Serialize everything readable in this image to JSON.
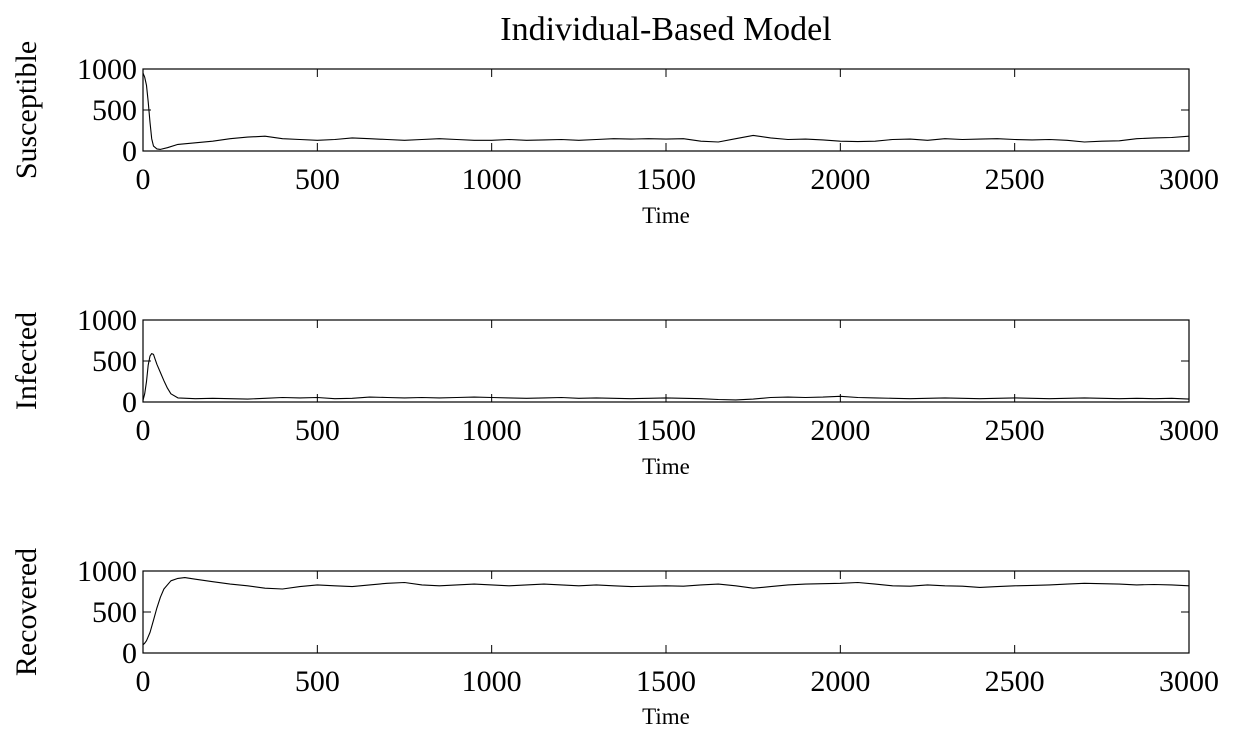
{
  "chart_data": {
    "type": "line",
    "title": "Individual-Based Model",
    "panels": [
      {
        "id": "susceptible",
        "ylabel": "Susceptible",
        "xlabel": "Time",
        "xlim": [
          0,
          3000
        ],
        "ylim": [
          0,
          1000
        ],
        "xticks": [
          0,
          500,
          1000,
          1500,
          2000,
          2500,
          3000
        ],
        "yticks": [
          0,
          500,
          1000
        ],
        "x": [
          0,
          5,
          10,
          15,
          20,
          25,
          30,
          40,
          50,
          70,
          100,
          150,
          200,
          250,
          300,
          350,
          400,
          450,
          500,
          550,
          600,
          650,
          700,
          750,
          800,
          850,
          900,
          950,
          1000,
          1050,
          1100,
          1150,
          1200,
          1250,
          1300,
          1350,
          1400,
          1450,
          1500,
          1550,
          1600,
          1650,
          1700,
          1750,
          1800,
          1850,
          1900,
          1950,
          2000,
          2050,
          2100,
          2150,
          2200,
          2250,
          2300,
          2350,
          2400,
          2450,
          2500,
          2550,
          2600,
          2650,
          2700,
          2750,
          2800,
          2850,
          2900,
          2950,
          3000
        ],
        "values": [
          950,
          900,
          800,
          600,
          350,
          150,
          60,
          25,
          20,
          40,
          80,
          100,
          120,
          150,
          170,
          180,
          150,
          140,
          130,
          140,
          160,
          150,
          140,
          130,
          140,
          150,
          140,
          130,
          130,
          140,
          130,
          135,
          140,
          130,
          140,
          150,
          145,
          150,
          145,
          150,
          120,
          110,
          150,
          190,
          160,
          140,
          145,
          135,
          120,
          115,
          120,
          140,
          145,
          130,
          150,
          140,
          145,
          150,
          140,
          135,
          140,
          130,
          110,
          120,
          125,
          150,
          160,
          165,
          180
        ]
      },
      {
        "id": "infected",
        "ylabel": "Infected",
        "xlabel": "Time",
        "xlim": [
          0,
          3000
        ],
        "ylim": [
          0,
          1000
        ],
        "xticks": [
          0,
          500,
          1000,
          1500,
          2000,
          2500,
          3000
        ],
        "yticks": [
          0,
          500,
          1000
        ],
        "x": [
          0,
          5,
          10,
          15,
          20,
          25,
          30,
          35,
          40,
          50,
          60,
          70,
          80,
          100,
          150,
          200,
          250,
          300,
          350,
          400,
          450,
          500,
          550,
          600,
          650,
          700,
          750,
          800,
          850,
          900,
          950,
          1000,
          1050,
          1100,
          1150,
          1200,
          1250,
          1300,
          1350,
          1400,
          1450,
          1500,
          1550,
          1600,
          1650,
          1700,
          1750,
          1800,
          1850,
          1900,
          1950,
          2000,
          2050,
          2100,
          2150,
          2200,
          2250,
          2300,
          2350,
          2400,
          2450,
          2500,
          2550,
          2600,
          2650,
          2700,
          2750,
          2800,
          2850,
          2900,
          2950,
          3000
        ],
        "values": [
          20,
          100,
          250,
          450,
          560,
          590,
          580,
          520,
          460,
          360,
          260,
          170,
          100,
          50,
          40,
          45,
          40,
          35,
          45,
          55,
          50,
          55,
          40,
          45,
          60,
          55,
          50,
          55,
          50,
          55,
          60,
          55,
          50,
          45,
          50,
          55,
          45,
          50,
          45,
          40,
          45,
          50,
          45,
          40,
          30,
          25,
          35,
          55,
          60,
          55,
          60,
          70,
          55,
          50,
          45,
          40,
          45,
          50,
          45,
          40,
          45,
          50,
          45,
          40,
          45,
          50,
          45,
          40,
          45,
          40,
          45,
          35
        ]
      },
      {
        "id": "recovered",
        "ylabel": "Recovered",
        "xlabel": "Time",
        "xlim": [
          0,
          3000
        ],
        "ylim": [
          0,
          1000
        ],
        "xticks": [
          0,
          500,
          1000,
          1500,
          2000,
          2500,
          3000
        ],
        "yticks": [
          0,
          500,
          1000
        ],
        "x": [
          0,
          5,
          10,
          20,
          30,
          40,
          50,
          60,
          80,
          100,
          120,
          150,
          200,
          250,
          300,
          350,
          400,
          450,
          500,
          550,
          600,
          650,
          700,
          750,
          800,
          850,
          900,
          950,
          1000,
          1050,
          1100,
          1150,
          1200,
          1250,
          1300,
          1350,
          1400,
          1450,
          1500,
          1550,
          1600,
          1650,
          1700,
          1750,
          1800,
          1850,
          1900,
          1950,
          2000,
          2050,
          2100,
          2150,
          2200,
          2250,
          2300,
          2350,
          2400,
          2450,
          2500,
          2550,
          2600,
          2650,
          2700,
          2750,
          2800,
          2850,
          2900,
          2950,
          3000
        ],
        "values": [
          100,
          120,
          150,
          250,
          400,
          550,
          680,
          780,
          880,
          910,
          920,
          900,
          870,
          840,
          820,
          790,
          780,
          810,
          830,
          820,
          810,
          830,
          850,
          860,
          830,
          820,
          830,
          840,
          830,
          820,
          830,
          840,
          830,
          820,
          830,
          820,
          810,
          815,
          820,
          815,
          830,
          840,
          820,
          790,
          810,
          830,
          840,
          845,
          850,
          860,
          840,
          820,
          815,
          830,
          820,
          815,
          800,
          810,
          820,
          825,
          830,
          840,
          850,
          845,
          840,
          830,
          835,
          830,
          820
        ]
      }
    ]
  }
}
